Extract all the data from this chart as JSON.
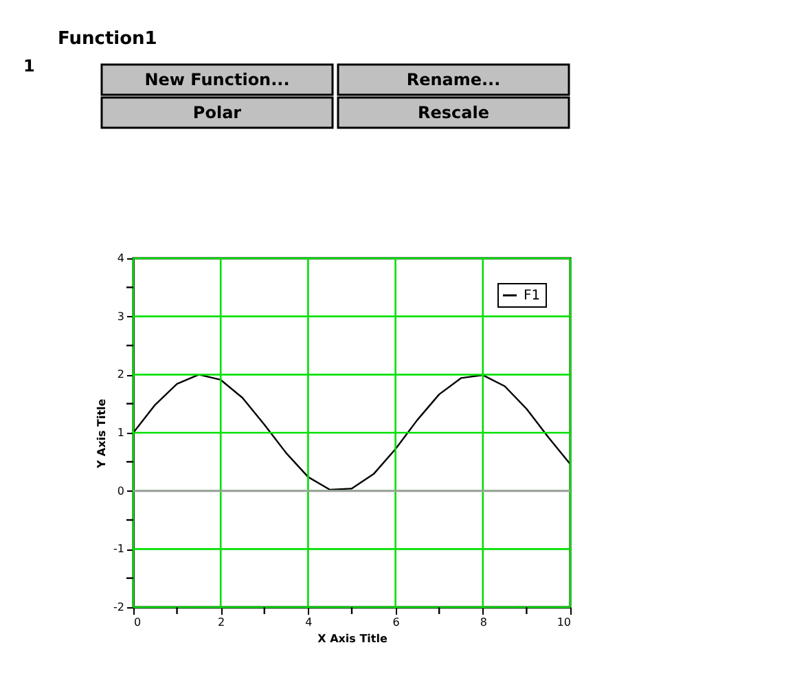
{
  "chart_data": {
    "type": "line",
    "title": "Function1",
    "annotations": [
      "1",
      "New Function...",
      "Rename...",
      "Polar",
      "Rescale"
    ],
    "xlabel": "X Axis Title",
    "ylabel": "Y Axis Title",
    "x": [
      0,
      0.5,
      1,
      1.5,
      2,
      2.5,
      3,
      3.5,
      4,
      4.5,
      5,
      5.5,
      6,
      6.5,
      7,
      7.5,
      8,
      8.5,
      9,
      9.5,
      10
    ],
    "series": [
      {
        "name": "F1",
        "color": "#000000",
        "values": [
          1.0,
          1.48,
          1.84,
          2.0,
          1.91,
          1.6,
          1.14,
          0.65,
          0.24,
          0.02,
          0.04,
          0.29,
          0.72,
          1.22,
          1.66,
          1.94,
          1.99,
          1.8,
          1.41,
          0.92,
          0.46
        ]
      }
    ],
    "xlim": [
      0,
      10
    ],
    "ylim": [
      -2,
      4
    ],
    "xticks": [
      0,
      {
        "value": 1,
        "label": null
      },
      2,
      {
        "value": 3,
        "label": null
      },
      4,
      {
        "value": 5,
        "label": null
      },
      6,
      {
        "value": 7,
        "label": null
      },
      8,
      {
        "value": 9,
        "label": null
      },
      10
    ],
    "yticks": [
      -2,
      {
        "value": -1.5,
        "label": null
      },
      -1,
      {
        "value": -0.5,
        "label": null
      },
      0,
      {
        "value": 0.5,
        "label": null
      },
      1,
      {
        "value": 1.5,
        "label": null
      },
      2,
      {
        "value": 2.5,
        "label": null
      },
      3,
      {
        "value": 3.5,
        "label": null
      },
      4
    ],
    "ref_lines": [
      {
        "axis": "y",
        "value": 0,
        "color": "#a0a0a0"
      }
    ],
    "grid": true,
    "legend": "top right",
    "marker": "none",
    "line_style": "solid"
  }
}
